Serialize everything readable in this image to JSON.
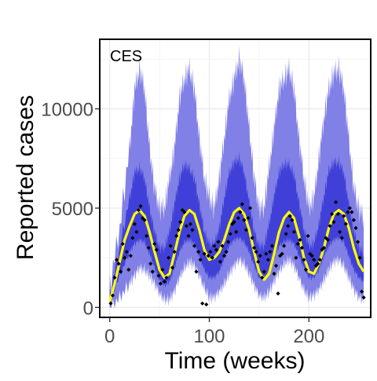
{
  "chart_data": {
    "type": "line",
    "title": "",
    "panel_label": "CES",
    "xlabel": "Time (weeks)",
    "ylabel": "Reported cases",
    "xlim": [
      -10,
      262
    ],
    "ylim": [
      -500,
      13500
    ],
    "x_ticks": [
      0,
      100,
      200
    ],
    "x_tick_labels": [
      "0",
      "100",
      "200"
    ],
    "y_ticks": [
      0,
      5000,
      10000
    ],
    "y_tick_labels": [
      "0",
      "5000",
      "10000"
    ],
    "grid": true,
    "legend": "none",
    "colors": {
      "outer_band": "#8080e6",
      "inner_band": "#4040d9",
      "median_line": "#ffff00",
      "observed_points": "#000000"
    },
    "series": [
      {
        "role": "outer-band",
        "x": [
          0,
          10,
          20,
          25,
          30,
          35,
          40,
          45,
          50,
          55,
          60,
          65,
          70,
          75,
          80,
          85,
          90,
          95,
          100,
          105,
          110,
          115,
          120,
          125,
          130,
          135,
          140,
          145,
          150,
          155,
          160,
          165,
          170,
          175,
          180,
          185,
          190,
          195,
          200,
          205,
          210,
          215,
          220,
          225,
          230,
          235,
          240,
          245,
          250,
          255
        ],
        "lower": [
          0,
          500,
          1200,
          1600,
          2000,
          1900,
          1600,
          1200,
          700,
          400,
          400,
          800,
          1500,
          2000,
          2300,
          2100,
          1600,
          1000,
          500,
          500,
          800,
          1200,
          1700,
          2100,
          2400,
          2200,
          1700,
          1100,
          600,
          500,
          800,
          1300,
          1800,
          2200,
          2400,
          2100,
          1500,
          900,
          500,
          600,
          900,
          1400,
          1900,
          2300,
          2400,
          2100,
          1500,
          900,
          500,
          400
        ],
        "upper": [
          1000,
          4000,
          8000,
          11000,
          12000,
          11000,
          8000,
          6000,
          5000,
          5000,
          6500,
          8000,
          10500,
          11500,
          12000,
          11000,
          8500,
          6500,
          5500,
          5000,
          6500,
          8500,
          10500,
          11500,
          12500,
          11500,
          9000,
          6500,
          5000,
          5000,
          7000,
          9000,
          11000,
          11500,
          12000,
          11000,
          8500,
          6500,
          5000,
          5500,
          7500,
          9500,
          11000,
          11800,
          12000,
          11000,
          8500,
          6000,
          5000,
          4500
        ]
      },
      {
        "role": "inner-band",
        "x": [
          0,
          10,
          20,
          25,
          30,
          35,
          40,
          45,
          50,
          55,
          60,
          65,
          70,
          75,
          80,
          85,
          90,
          95,
          100,
          105,
          110,
          115,
          120,
          125,
          130,
          135,
          140,
          145,
          150,
          155,
          160,
          165,
          170,
          175,
          180,
          185,
          190,
          195,
          200,
          205,
          210,
          215,
          220,
          225,
          230,
          235,
          240,
          245,
          250,
          255
        ],
        "lower": [
          300,
          1600,
          2800,
          3200,
          3400,
          3300,
          2700,
          2000,
          1400,
          1100,
          1300,
          2000,
          2800,
          3300,
          3400,
          3200,
          2600,
          1900,
          1500,
          1500,
          1800,
          2500,
          3100,
          3400,
          3500,
          3300,
          2800,
          2100,
          1500,
          1500,
          1800,
          2500,
          3100,
          3300,
          3400,
          3200,
          2600,
          2000,
          1500,
          1500,
          1900,
          2600,
          3100,
          3400,
          3500,
          3300,
          2600,
          1900,
          1500,
          1300
        ],
        "upper": [
          600,
          3000,
          5500,
          6800,
          7000,
          6500,
          5000,
          3800,
          3000,
          3000,
          3800,
          5200,
          6500,
          7200,
          7000,
          6500,
          5200,
          3800,
          3200,
          3200,
          4000,
          5500,
          6800,
          7300,
          7500,
          6800,
          5300,
          3800,
          3100,
          3100,
          4200,
          5600,
          6800,
          7200,
          7200,
          6700,
          5300,
          3900,
          3100,
          3200,
          4200,
          5600,
          6900,
          7300,
          7300,
          6800,
          5200,
          3800,
          3000,
          2700
        ]
      },
      {
        "role": "median",
        "x": [
          0,
          5,
          10,
          15,
          20,
          25,
          30,
          35,
          40,
          45,
          50,
          55,
          60,
          65,
          70,
          75,
          80,
          85,
          90,
          95,
          100,
          105,
          110,
          115,
          120,
          125,
          130,
          135,
          140,
          145,
          150,
          155,
          160,
          165,
          170,
          175,
          180,
          185,
          190,
          195,
          200,
          205,
          210,
          215,
          220,
          225,
          230,
          235,
          240,
          245,
          250,
          255
        ],
        "values": [
          300,
          1200,
          2300,
          3400,
          4100,
          4700,
          4900,
          4600,
          3800,
          2800,
          1900,
          1500,
          1700,
          2700,
          3800,
          4600,
          4900,
          4700,
          3900,
          2900,
          2400,
          2500,
          2800,
          3400,
          4200,
          4800,
          5000,
          4700,
          3900,
          2800,
          1800,
          1400,
          1700,
          2700,
          3800,
          4500,
          4800,
          4500,
          3600,
          2500,
          1800,
          1700,
          2200,
          3000,
          4000,
          4700,
          4900,
          4700,
          4000,
          3000,
          2200,
          1800
        ]
      },
      {
        "role": "observed",
        "x": [
          1,
          3,
          5,
          7,
          9,
          11,
          13,
          15,
          17,
          19,
          21,
          23,
          25,
          27,
          29,
          31,
          33,
          35,
          37,
          39,
          41,
          43,
          45,
          47,
          49,
          51,
          53,
          55,
          57,
          59,
          61,
          63,
          65,
          67,
          69,
          71,
          73,
          75,
          77,
          79,
          81,
          83,
          85,
          87,
          89,
          91,
          93,
          95,
          97,
          99,
          101,
          103,
          105,
          107,
          109,
          111,
          113,
          115,
          117,
          119,
          121,
          123,
          125,
          127,
          129,
          131,
          133,
          135,
          137,
          139,
          141,
          143,
          145,
          147,
          149,
          151,
          153,
          155,
          157,
          159,
          161,
          163,
          165,
          167,
          169,
          171,
          173,
          175,
          177,
          179,
          181,
          183,
          185,
          187,
          189,
          191,
          193,
          195,
          197,
          199,
          201,
          203,
          205,
          207,
          209,
          211,
          213,
          215,
          217,
          219,
          221,
          223,
          225,
          227,
          229,
          231,
          233,
          235,
          237,
          239,
          241,
          243,
          245,
          247,
          249,
          251,
          253,
          255
        ],
        "values": [
          200,
          600,
          1500,
          2400,
          2200,
          1800,
          3200,
          2500,
          2800,
          1900,
          2600,
          3500,
          4200,
          3800,
          4900,
          5100,
          4500,
          4400,
          3600,
          3000,
          2200,
          1800,
          3200,
          2900,
          1600,
          1200,
          1900,
          1300,
          1500,
          2500,
          3100,
          2000,
          2800,
          3600,
          3900,
          4300,
          4900,
          4800,
          4100,
          3600,
          4200,
          3900,
          3100,
          1800,
          2800,
          2400,
          200,
          2700,
          150,
          2600,
          2800,
          2500,
          3100,
          2900,
          3300,
          2300,
          3100,
          2600,
          2800,
          3300,
          3700,
          4200,
          4300,
          3800,
          4500,
          4800,
          5200,
          4400,
          3900,
          4500,
          5000,
          3500,
          3000,
          2800,
          2300,
          2600,
          1500,
          1800,
          2700,
          2400,
          2800,
          3100,
          1700,
          2100,
          700,
          2600,
          2700,
          3100,
          3700,
          4100,
          4600,
          4400,
          3800,
          2500,
          3200,
          3400,
          3000,
          2400,
          1900,
          3600,
          2700,
          2600,
          2400,
          2100,
          2200,
          2400,
          2900,
          3000,
          3500,
          3400,
          4100,
          4700,
          4300,
          5300,
          4700,
          3800,
          3500,
          4600,
          4200,
          4800,
          5000,
          4800,
          4400,
          4000,
          3300,
          2500,
          800,
          500
        ]
      }
    ]
  }
}
